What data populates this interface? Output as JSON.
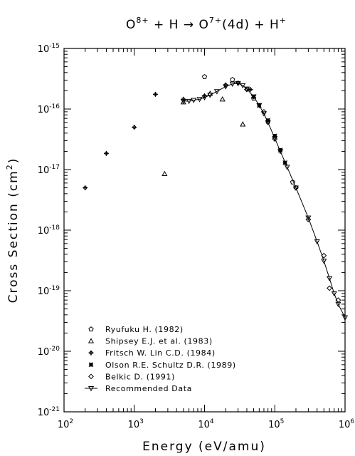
{
  "chart_data": {
    "type": "scatter",
    "title_parts": {
      "a": "O",
      "a_sup": "8+",
      "b": " + H → O",
      "b_sup": "7+",
      "c": "(4d) + H",
      "c_sup": "+"
    },
    "xlabel": "Energy (eV/amu)",
    "ylabel_main": "Cross Section (cm",
    "ylabel_sup": "2",
    "ylabel_end": ")",
    "xscale": "log",
    "yscale": "log",
    "xlim": [
      100,
      1000000
    ],
    "ylim": [
      1e-21,
      1e-15
    ],
    "x_ticks": [
      {
        "base": "10",
        "exp": "2",
        "value": 100
      },
      {
        "base": "10",
        "exp": "3",
        "value": 1000
      },
      {
        "base": "10",
        "exp": "4",
        "value": 10000
      },
      {
        "base": "10",
        "exp": "5",
        "value": 100000
      },
      {
        "base": "10",
        "exp": "6",
        "value": 1000000
      }
    ],
    "y_ticks": [
      {
        "base": "10",
        "exp": "-21",
        "value": 1e-21
      },
      {
        "base": "10",
        "exp": "-20",
        "value": 1e-20
      },
      {
        "base": "10",
        "exp": "-19",
        "value": 1e-19
      },
      {
        "base": "10",
        "exp": "-18",
        "value": 1e-18
      },
      {
        "base": "10",
        "exp": "-17",
        "value": 1e-17
      },
      {
        "base": "10",
        "exp": "-16",
        "value": 1e-16
      },
      {
        "base": "10",
        "exp": "-15",
        "value": 1e-15
      }
    ],
    "grid": false,
    "legend_position": "bottom-left",
    "series": [
      {
        "name": "Ryufuku H. (1982)",
        "marker": "pentagon",
        "points": [
          [
            10000,
            3.4e-16
          ],
          [
            25000,
            3.05e-16
          ],
          [
            50000,
            1.5e-16
          ],
          [
            80000,
            6.2e-17
          ],
          [
            180000,
            6.2e-18
          ]
        ]
      },
      {
        "name": "Shipsey E.J. et al. (1983)",
        "marker": "triangle",
        "points": [
          [
            2700,
            8.5e-18
          ],
          [
            5000,
            1.3e-16
          ],
          [
            12000,
            1.8e-16
          ],
          [
            18000,
            1.45e-16
          ],
          [
            35000,
            5.6e-17
          ]
        ]
      },
      {
        "name": "Fritsch W. Lin C.D. (1984)",
        "marker": "plus-circle",
        "points": [
          [
            200,
            5e-18
          ],
          [
            400,
            1.85e-17
          ],
          [
            1000,
            5e-17
          ],
          [
            2000,
            1.75e-16
          ],
          [
            5000,
            1.45e-16
          ],
          [
            10000,
            1.65e-16
          ],
          [
            20000,
            2.5e-16
          ],
          [
            30000,
            2.7e-16
          ],
          [
            45000,
            2.1e-16
          ]
        ]
      },
      {
        "name": "Olson R.E. Schultz D.R. (1989)",
        "marker": "x-square",
        "points": [
          [
            50000,
            1.6e-16
          ],
          [
            60000,
            1.15e-16
          ],
          [
            80000,
            6.5e-17
          ],
          [
            100000,
            3.6e-17
          ],
          [
            120000,
            2.1e-17
          ],
          [
            140000,
            1.3e-17
          ]
        ]
      },
      {
        "name": "Belkic D. (1991)",
        "marker": "diamond",
        "points": [
          [
            40000,
            2.1e-16
          ],
          [
            70000,
            9e-17
          ],
          [
            100000,
            3.2e-17
          ],
          [
            200000,
            5e-18
          ],
          [
            300000,
            1.5e-18
          ],
          [
            500000,
            3.8e-19
          ],
          [
            600000,
            1.1e-19
          ],
          [
            800000,
            7e-20
          ]
        ]
      },
      {
        "name": "Recommended Data",
        "marker": "triangle-down-line",
        "points": [
          [
            5000,
            1.35e-16
          ],
          [
            6000,
            1.35e-16
          ],
          [
            7000,
            1.4e-16
          ],
          [
            8500,
            1.45e-16
          ],
          [
            10000,
            1.55e-16
          ],
          [
            12000,
            1.7e-16
          ],
          [
            15000,
            1.95e-16
          ],
          [
            20000,
            2.35e-16
          ],
          [
            25000,
            2.6e-16
          ],
          [
            30000,
            2.65e-16
          ],
          [
            35000,
            2.45e-16
          ],
          [
            40000,
            2.15e-16
          ],
          [
            50000,
            1.6e-16
          ],
          [
            60000,
            1.15e-16
          ],
          [
            70000,
            8.4e-17
          ],
          [
            80000,
            6e-17
          ],
          [
            100000,
            3.3e-17
          ],
          [
            120000,
            2e-17
          ],
          [
            150000,
            1.1e-17
          ],
          [
            200000,
            5e-18
          ],
          [
            300000,
            1.6e-18
          ],
          [
            400000,
            6.5e-19
          ],
          [
            500000,
            3.1e-19
          ],
          [
            600000,
            1.6e-19
          ],
          [
            700000,
            9e-20
          ],
          [
            800000,
            6e-20
          ],
          [
            1000000,
            3.6e-20
          ]
        ]
      }
    ]
  }
}
